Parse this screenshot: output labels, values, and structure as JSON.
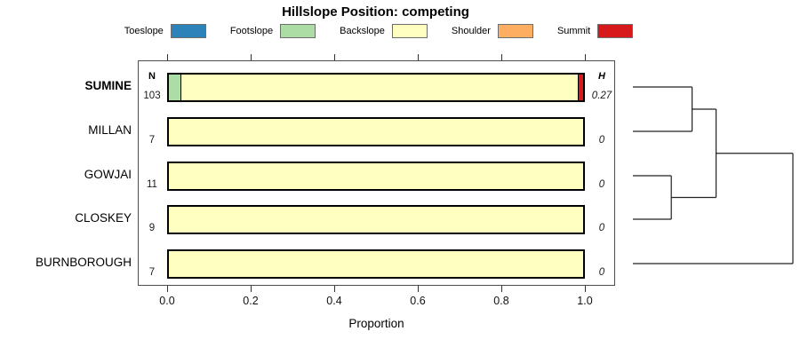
{
  "title": "Hillslope Position: competing",
  "columns": {
    "n_header": "N",
    "h_header": "H"
  },
  "chart_data": {
    "type": "bar",
    "subtype": "horizontal-stacked-proportions-with-dendrogram",
    "title": "Hillslope Position: competing",
    "xlabel": "Proportion",
    "xlim": [
      0,
      1
    ],
    "xticks": [
      0,
      0.2,
      0.4,
      0.6,
      0.8,
      1.0
    ],
    "xtick_labels": [
      "0.0",
      "0.2",
      "0.4",
      "0.6",
      "0.8",
      "1.0"
    ],
    "grid": false,
    "legend_position": "top",
    "positions": [
      {
        "label": "Toeslope",
        "color": "#2B83BA"
      },
      {
        "label": "Footslope",
        "color": "#ABDDA4"
      },
      {
        "label": "Backslope",
        "color": "#FFFFBF"
      },
      {
        "label": "Shoulder",
        "color": "#FDAE61"
      },
      {
        "label": "Summit",
        "color": "#D7191C"
      }
    ],
    "categories": [
      "SUMINE",
      "MILLAN",
      "GOWJAI",
      "CLOSKEY",
      "BURNBOROUGH"
    ],
    "rows": [
      {
        "name": "SUMINE",
        "emphasis": true,
        "n": "103",
        "h": "0.27",
        "segments": [
          {
            "position": "Footslope",
            "value": 0.028
          },
          {
            "position": "Backslope",
            "value": 0.959
          },
          {
            "position": "Summit",
            "value": 0.013
          }
        ]
      },
      {
        "name": "MILLAN",
        "emphasis": false,
        "n": "7",
        "h": "0",
        "segments": [
          {
            "position": "Backslope",
            "value": 1.0
          }
        ]
      },
      {
        "name": "GOWJAI",
        "emphasis": false,
        "n": "11",
        "h": "0",
        "segments": [
          {
            "position": "Backslope",
            "value": 1.0
          }
        ]
      },
      {
        "name": "CLOSKEY",
        "emphasis": false,
        "n": "9",
        "h": "0",
        "segments": [
          {
            "position": "Backslope",
            "value": 1.0
          }
        ]
      },
      {
        "name": "BURNBOROUGH",
        "emphasis": false,
        "n": "7",
        "h": "0",
        "segments": [
          {
            "position": "Backslope",
            "value": 1.0
          }
        ]
      }
    ],
    "dendrogram": {
      "orientation": "right",
      "tree": {
        "h": 1.0,
        "children": [
          {
            "h": 0.52,
            "children": [
              {
                "h": 0.37,
                "children": [
                  "SUMINE",
                  "MILLAN"
                ]
              },
              {
                "h": 0.24,
                "children": [
                  "GOWJAI",
                  "CLOSKEY"
                ]
              }
            ]
          },
          "BURNBOROUGH"
        ]
      }
    }
  }
}
